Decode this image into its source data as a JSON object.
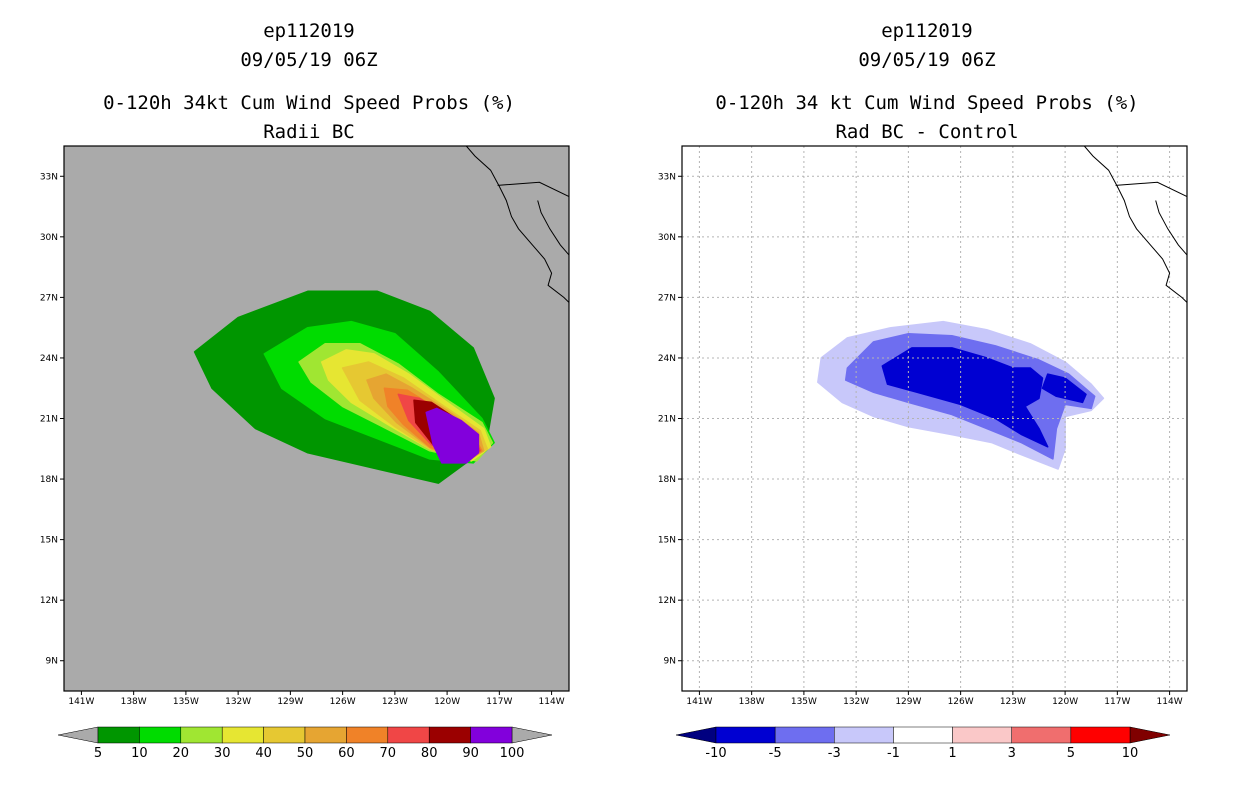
{
  "chart_data": [
    {
      "type": "heatmap",
      "storm_id": "ep112019",
      "datetime": "09/05/19 06Z",
      "title": "0-120h 34kt Cum Wind Speed Probs (%)",
      "subtitle": "Radii BC",
      "background_color": "#aaaaaa",
      "x_ticks": [
        "141W",
        "138W",
        "135W",
        "132W",
        "129W",
        "126W",
        "123W",
        "120W",
        "117W",
        "114W"
      ],
      "y_ticks": [
        "33N",
        "30N",
        "27N",
        "24N",
        "21N",
        "18N",
        "15N",
        "12N",
        "9N"
      ],
      "x_range_lon": [
        -142,
        -113
      ],
      "y_range_lat": [
        7.5,
        34.5
      ],
      "grid": false,
      "colorbar": {
        "levels": [
          "5",
          "10",
          "20",
          "30",
          "40",
          "50",
          "60",
          "70",
          "80",
          "90",
          "100"
        ],
        "colors": [
          "#009600",
          "#00dc00",
          "#a0e632",
          "#e6e632",
          "#e6c832",
          "#e6a532",
          "#f08228",
          "#f04646",
          "#9b0000",
          "#8200dc"
        ],
        "under_color": "#aaaaaa",
        "over_color": "#aaaaaa"
      },
      "contours": [
        {
          "level": "5",
          "points": [
            [
              -134.5,
              24.3
            ],
            [
              -132,
              26
            ],
            [
              -128,
              27.3
            ],
            [
              -124,
              27.3
            ],
            [
              -121,
              26.3
            ],
            [
              -118.5,
              24.5
            ],
            [
              -117.3,
              22
            ],
            [
              -117.8,
              19.5
            ],
            [
              -120.5,
              17.8
            ],
            [
              -124,
              18.5
            ],
            [
              -128,
              19.3
            ],
            [
              -131,
              20.5
            ],
            [
              -133.5,
              22.5
            ]
          ]
        },
        {
          "level": "10",
          "points": [
            [
              -130.5,
              24.2
            ],
            [
              -128,
              25.5
            ],
            [
              -125.5,
              25.8
            ],
            [
              -123,
              25.2
            ],
            [
              -120.5,
              23.3
            ],
            [
              -118,
              21
            ],
            [
              -117.3,
              19.8
            ],
            [
              -118.5,
              18.8
            ],
            [
              -121,
              19
            ],
            [
              -124,
              20
            ],
            [
              -127,
              21
            ],
            [
              -129.5,
              22.5
            ]
          ]
        },
        {
          "level": "20",
          "points": [
            [
              -128.5,
              23.8
            ],
            [
              -127,
              24.7
            ],
            [
              -125,
              24.7
            ],
            [
              -122.8,
              23.7
            ],
            [
              -120.5,
              22.2
            ],
            [
              -118,
              20.8
            ],
            [
              -117.4,
              19.8
            ],
            [
              -118.3,
              18.9
            ],
            [
              -121,
              19.4
            ],
            [
              -123.5,
              20.5
            ],
            [
              -126,
              21.6
            ],
            [
              -127.8,
              22.8
            ]
          ]
        },
        {
          "level": "30",
          "points": [
            [
              -127.2,
              23.8
            ],
            [
              -125.8,
              24.4
            ],
            [
              -124.2,
              24.2
            ],
            [
              -122.2,
              23.2
            ],
            [
              -120,
              21.8
            ],
            [
              -117.9,
              20.5
            ],
            [
              -117.5,
              19.6
            ],
            [
              -118.6,
              18.9
            ],
            [
              -121,
              19.5
            ],
            [
              -123.2,
              20.6
            ],
            [
              -125.5,
              21.8
            ],
            [
              -126.8,
              22.9
            ]
          ]
        },
        {
          "level": "40",
          "points": [
            [
              -126,
              23.5
            ],
            [
              -124.5,
              23.8
            ],
            [
              -122.5,
              23
            ],
            [
              -120.5,
              21.8
            ],
            [
              -118.1,
              20.4
            ],
            [
              -117.7,
              19.5
            ],
            [
              -118.8,
              18.9
            ],
            [
              -121,
              19.5
            ],
            [
              -123,
              20.6
            ],
            [
              -125,
              21.9
            ]
          ]
        },
        {
          "level": "50",
          "points": [
            [
              -124.6,
              22.9
            ],
            [
              -123.5,
              23.2
            ],
            [
              -122,
              22.5
            ],
            [
              -120,
              21.4
            ],
            [
              -118.2,
              20.3
            ],
            [
              -117.9,
              19.4
            ],
            [
              -118.9,
              18.9
            ],
            [
              -120.9,
              19.5
            ],
            [
              -122.9,
              20.8
            ],
            [
              -124.2,
              22
            ]
          ]
        },
        {
          "level": "60",
          "points": [
            [
              -123.6,
              22.5
            ],
            [
              -122.3,
              22.4
            ],
            [
              -120.6,
              21.5
            ],
            [
              -118.6,
              20.3
            ],
            [
              -118,
              19.4
            ],
            [
              -119,
              18.9
            ],
            [
              -121,
              19.6
            ],
            [
              -122.5,
              20.7
            ],
            [
              -123.4,
              21.6
            ]
          ]
        },
        {
          "level": "70",
          "points": [
            [
              -122.8,
              22.2
            ],
            [
              -121.6,
              22
            ],
            [
              -120.3,
              21.3
            ],
            [
              -118.6,
              20.3
            ],
            [
              -118.1,
              19.4
            ],
            [
              -119,
              18.9
            ],
            [
              -120.9,
              19.7
            ],
            [
              -122.2,
              20.9
            ]
          ]
        },
        {
          "level": "80",
          "points": [
            [
              -121.9,
              21.9
            ],
            [
              -120.9,
              21.8
            ],
            [
              -119.5,
              21
            ],
            [
              -118.4,
              20.2
            ],
            [
              -118.2,
              19.4
            ],
            [
              -119.1,
              18.9
            ],
            [
              -120.7,
              19.6
            ],
            [
              -121.8,
              20.8
            ]
          ]
        },
        {
          "level": "90",
          "points": [
            [
              -121.2,
              21.3
            ],
            [
              -120.6,
              21.5
            ],
            [
              -119.2,
              20.9
            ],
            [
              -118.2,
              20.2
            ],
            [
              -118.2,
              19.3
            ],
            [
              -118.9,
              18.8
            ],
            [
              -120.3,
              18.8
            ],
            [
              -120.8,
              19.7
            ]
          ]
        },
        {
          "level": "100",
          "points": [
            [
              -120.6,
              21.2
            ],
            [
              -119.9,
              21.2
            ],
            [
              -118.9,
              20.6
            ],
            [
              -118.3,
              20.1
            ],
            [
              -118.3,
              19.3
            ],
            [
              -118.9,
              18.9
            ],
            [
              -120.3,
              18.9
            ],
            [
              -120.6,
              19.8
            ]
          ]
        }
      ]
    },
    {
      "type": "heatmap",
      "storm_id": "ep112019",
      "datetime": "09/05/19 06Z",
      "title": "0-120h 34 kt Cum Wind Speed Probs (%)",
      "subtitle": "Rad BC - Control",
      "background_color": "#ffffff",
      "x_ticks": [
        "141W",
        "138W",
        "135W",
        "132W",
        "129W",
        "126W",
        "123W",
        "120W",
        "117W",
        "114W"
      ],
      "y_ticks": [
        "33N",
        "30N",
        "27N",
        "24N",
        "21N",
        "18N",
        "15N",
        "12N",
        "9N"
      ],
      "x_range_lon": [
        -142,
        -113
      ],
      "y_range_lat": [
        7.5,
        34.5
      ],
      "grid": true,
      "colorbar": {
        "levels": [
          "-10",
          "-5",
          "-3",
          "-1",
          "1",
          "3",
          "5",
          "10"
        ],
        "colors": [
          "#0000d2",
          "#6e6ef0",
          "#c8c8fa",
          "#ffffff",
          "#fac8c8",
          "#f06e6e",
          "#ff0000"
        ],
        "under_color": "#000080",
        "over_color": "#800000"
      },
      "contours": [
        {
          "level": "-1",
          "points": [
            [
              -136,
              26.3
            ],
            [
              -134.5,
              27.2
            ],
            [
              -133,
              26.5
            ],
            [
              -130,
              27.2
            ],
            [
              -127,
              27
            ],
            [
              -124,
              26.3
            ],
            [
              -121.5,
              25.2
            ],
            [
              -119.5,
              23.6
            ],
            [
              -117.8,
              22.3
            ],
            [
              -117.7,
              21.6
            ],
            [
              -119,
              21
            ],
            [
              -118.5,
              20
            ],
            [
              -119.5,
              18.8
            ],
            [
              -121,
              18.4
            ],
            [
              -123,
              18.2
            ],
            [
              -126,
              17.7
            ],
            [
              -128,
              18.5
            ],
            [
              -130,
              18.8
            ],
            [
              -131.5,
              19.2
            ],
            [
              -132.5,
              20.8
            ],
            [
              -134.5,
              21.1
            ],
            [
              -135,
              22.6
            ],
            [
              -136.5,
              23.9
            ],
            [
              -135.5,
              25.2
            ]
          ]
        },
        {
          "level": "-3",
          "points": [
            [
              -134,
              24
            ],
            [
              -132.5,
              25
            ],
            [
              -130,
              25.5
            ],
            [
              -127,
              25.8
            ],
            [
              -124.5,
              25.4
            ],
            [
              -122,
              24.7
            ],
            [
              -120,
              23.8
            ],
            [
              -118.5,
              22.7
            ],
            [
              -117.8,
              22
            ],
            [
              -118.5,
              21.4
            ],
            [
              -120,
              21.1
            ],
            [
              -120,
              19.5
            ],
            [
              -120.4,
              18.5
            ],
            [
              -122.5,
              19.2
            ],
            [
              -124.2,
              19.8
            ],
            [
              -126.5,
              20.2
            ],
            [
              -129,
              20.6
            ],
            [
              -131,
              21.1
            ],
            [
              -132.8,
              21.8
            ],
            [
              -134.2,
              22.8
            ]
          ]
        },
        {
          "level": "-5",
          "points": [
            [
              -132.5,
              23.5
            ],
            [
              -131,
              24.8
            ],
            [
              -129,
              25.2
            ],
            [
              -126.5,
              25.1
            ],
            [
              -124,
              24.6
            ],
            [
              -121.5,
              23.9
            ],
            [
              -119.8,
              23.2
            ],
            [
              -118.3,
              22.1
            ],
            [
              -118.5,
              21.5
            ],
            [
              -120,
              21.7
            ],
            [
              -120.5,
              20.5
            ],
            [
              -120.7,
              19
            ],
            [
              -122.5,
              19.8
            ],
            [
              -124.5,
              20.5
            ],
            [
              -126.5,
              21.2
            ],
            [
              -129,
              21.8
            ],
            [
              -131,
              22.3
            ],
            [
              -132.6,
              22.9
            ]
          ]
        },
        {
          "level": "-10",
          "points": [
            [
              -130.5,
              23.6
            ],
            [
              -128.8,
              24.5
            ],
            [
              -126.5,
              24.5
            ],
            [
              -124.5,
              24
            ],
            [
              -123,
              23.5
            ],
            [
              -122,
              23.5
            ],
            [
              -121.3,
              23
            ],
            [
              -121.5,
              22
            ],
            [
              -122.3,
              21.6
            ],
            [
              -121.5,
              20.5
            ],
            [
              -121,
              19.6
            ],
            [
              -122.5,
              20.2
            ],
            [
              -124,
              21
            ],
            [
              -126,
              21.7
            ],
            [
              -128.5,
              22.3
            ],
            [
              -130.2,
              22.7
            ]
          ]
        },
        {
          "level": "-10",
          "points": [
            [
              -121,
              23.2
            ],
            [
              -120,
              23
            ],
            [
              -118.8,
              22.2
            ],
            [
              -119,
              21.8
            ],
            [
              -120.5,
              22.1
            ],
            [
              -121.3,
              22.5
            ]
          ]
        }
      ]
    }
  ]
}
